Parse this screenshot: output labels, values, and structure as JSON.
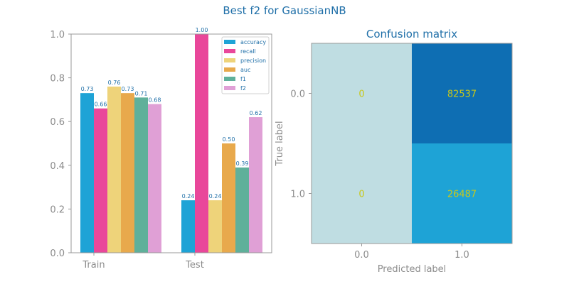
{
  "suptitle": "Best f2 for GaussianNB",
  "colors": {
    "accuracy": "#1ea3d6",
    "recall": "#e9479a",
    "precision": "#eed37a",
    "auc": "#e8a94c",
    "f1": "#5fb09a",
    "f2": "#e0a0d6",
    "title": "#1f6fa8",
    "cell_text": "#c8c81a",
    "cm_low": "#bfdde2",
    "cm_mid": "#1ea3d6",
    "cm_high": "#0e6eb3"
  },
  "chart_data": [
    {
      "type": "bar",
      "title": "",
      "xlabel": "",
      "ylabel": "",
      "categories": [
        "Train",
        "Test"
      ],
      "ylim": [
        0,
        1
      ],
      "yticks": [
        "0.0",
        "0.2",
        "0.4",
        "0.6",
        "0.8",
        "1.0"
      ],
      "legend_position": "top-right",
      "series": [
        {
          "name": "accuracy",
          "values": [
            0.73,
            0.24
          ],
          "labels": [
            "0.73",
            "0.24"
          ]
        },
        {
          "name": "recall",
          "values": [
            0.66,
            1.0
          ],
          "labels": [
            "0.66",
            "1.00"
          ]
        },
        {
          "name": "precision",
          "values": [
            0.76,
            0.24
          ],
          "labels": [
            "0.76",
            "0.24"
          ]
        },
        {
          "name": "auc",
          "values": [
            0.73,
            0.5
          ],
          "labels": [
            "0.73",
            "0.50"
          ]
        },
        {
          "name": "f1",
          "values": [
            0.71,
            0.39
          ],
          "labels": [
            "0.71",
            "0.39"
          ]
        },
        {
          "name": "f2",
          "values": [
            0.68,
            0.62
          ],
          "labels": [
            "0.68",
            "0.62"
          ]
        }
      ]
    },
    {
      "type": "heatmap",
      "title": "Confusion matrix",
      "xlabel": "Predicted label",
      "ylabel": "True label",
      "x_categories": [
        "0.0",
        "1.0"
      ],
      "y_categories": [
        "0.0",
        "1.0"
      ],
      "values": [
        [
          0,
          82537
        ],
        [
          0,
          26487
        ]
      ]
    }
  ]
}
